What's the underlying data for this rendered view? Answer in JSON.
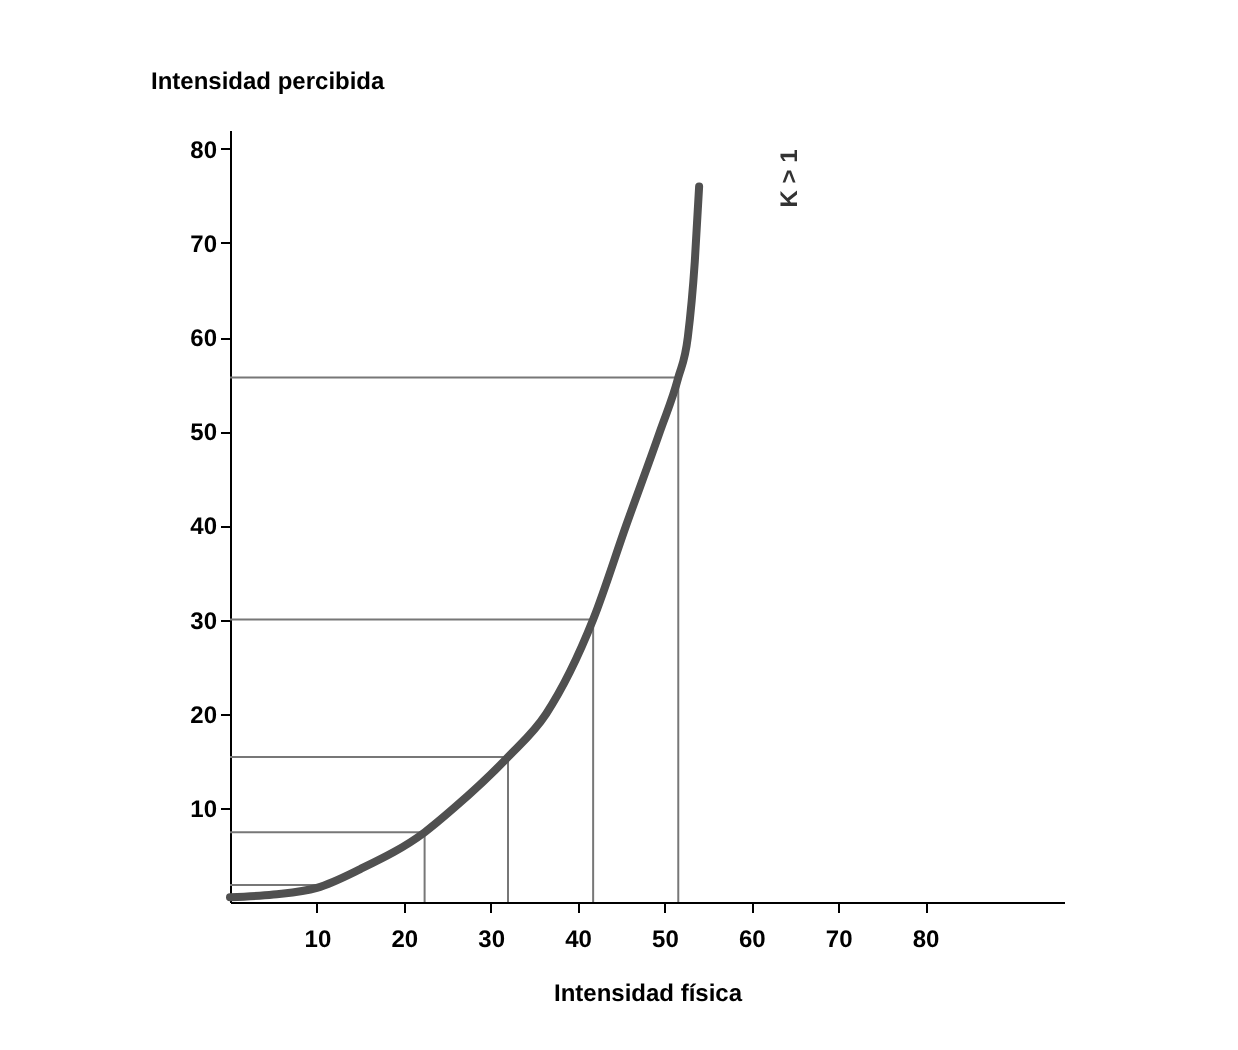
{
  "chart_data": {
    "type": "line",
    "xlabel": "Intensidad física",
    "ylabel": "Intensidad percibida",
    "x": [
      0,
      5,
      10,
      15,
      22.4,
      25.8,
      32,
      36.4,
      41.8,
      45.6,
      49.5,
      51.6,
      52.7,
      53.5,
      54
    ],
    "series": [
      {
        "color": "#505050",
        "values": [
          0.5,
          0.8,
          1.5,
          3.5,
          7.4,
          10,
          15.4,
          20,
          30,
          40,
          50,
          55.7,
          60,
          68,
          76
        ]
      }
    ],
    "xlim": [
      0,
      96
    ],
    "ylim": [
      0,
      82
    ],
    "xticks": [
      10,
      20,
      30,
      40,
      50,
      60,
      70,
      80
    ],
    "yticks": [
      10,
      20,
      30,
      40,
      50,
      60,
      70,
      80
    ],
    "ref_lines": [
      {
        "axis": "y",
        "value": 1.8
      },
      {
        "axis": "y",
        "value": 7.4
      },
      {
        "axis": "y",
        "value": 15.4
      },
      {
        "axis": "y",
        "value": 30
      },
      {
        "axis": "y",
        "value": 55.7
      },
      {
        "axis": "x",
        "value": 22.4
      },
      {
        "axis": "x",
        "value": 32
      },
      {
        "axis": "x",
        "value": 41.8
      },
      {
        "axis": "x",
        "value": 51.6
      }
    ],
    "annotations": [
      "K > 1"
    ],
    "grid": false,
    "marker": "none",
    "line_style": "solid"
  }
}
